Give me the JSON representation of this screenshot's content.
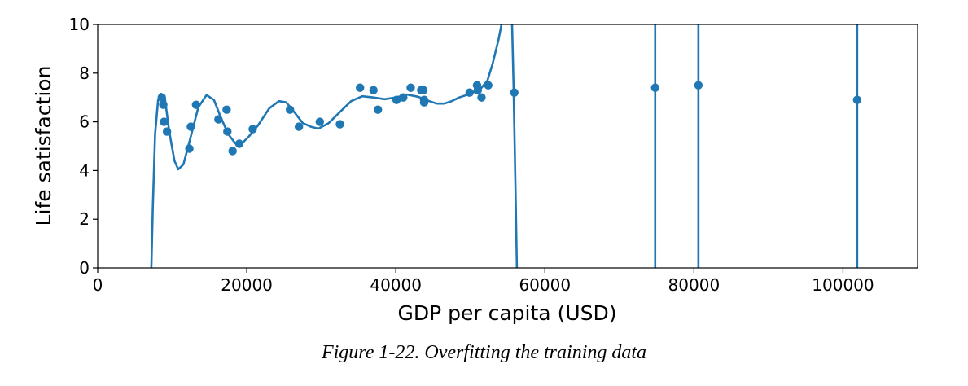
{
  "caption": "Figure 1-22. Overfitting the training data",
  "chart_data": {
    "type": "scatter",
    "xlabel": "GDP per capita (USD)",
    "ylabel": "Life satisfaction",
    "xlim": [
      0,
      110000
    ],
    "ylim": [
      0,
      10
    ],
    "xticks": [
      0,
      20000,
      40000,
      60000,
      80000,
      100000
    ],
    "xtick_labels": [
      "0",
      "20000",
      "40000",
      "60000",
      "80000",
      "100000"
    ],
    "yticks": [
      0,
      2,
      4,
      6,
      8,
      10
    ],
    "ytick_labels": [
      "0",
      "2",
      "4",
      "6",
      "8",
      "10"
    ],
    "grid": false,
    "color": "#1f77b4",
    "points": [
      [
        8600,
        7.0
      ],
      [
        8800,
        6.7
      ],
      [
        8900,
        6.0
      ],
      [
        9300,
        5.6
      ],
      [
        12300,
        4.9
      ],
      [
        12500,
        5.8
      ],
      [
        13200,
        6.7
      ],
      [
        16200,
        6.1
      ],
      [
        17300,
        6.5
      ],
      [
        17400,
        5.6
      ],
      [
        18100,
        4.8
      ],
      [
        19000,
        5.1
      ],
      [
        20800,
        5.7
      ],
      [
        25800,
        6.5
      ],
      [
        27000,
        5.8
      ],
      [
        29800,
        6.0
      ],
      [
        32500,
        5.9
      ],
      [
        35200,
        7.4
      ],
      [
        37000,
        7.3
      ],
      [
        37600,
        6.5
      ],
      [
        40100,
        6.9
      ],
      [
        41000,
        7.0
      ],
      [
        42000,
        7.4
      ],
      [
        43400,
        7.3
      ],
      [
        43700,
        7.3
      ],
      [
        43800,
        6.9
      ],
      [
        43800,
        6.8
      ],
      [
        49900,
        7.2
      ],
      [
        50900,
        7.5
      ],
      [
        51000,
        7.3
      ],
      [
        51500,
        7.0
      ],
      [
        52400,
        7.5
      ],
      [
        55900,
        7.2
      ],
      [
        74800,
        7.4
      ],
      [
        80600,
        7.5
      ],
      [
        101900,
        6.9
      ]
    ],
    "fit_curve": [
      [
        7200,
        0
      ],
      [
        7400,
        2.5
      ],
      [
        7700,
        5.5
      ],
      [
        8100,
        6.9
      ],
      [
        8500,
        7.15
      ],
      [
        9000,
        7.0
      ],
      [
        9600,
        5.6
      ],
      [
        10300,
        4.4
      ],
      [
        10800,
        4.05
      ],
      [
        11500,
        4.25
      ],
      [
        12500,
        5.4
      ],
      [
        13500,
        6.6
      ],
      [
        14600,
        7.1
      ],
      [
        15600,
        6.9
      ],
      [
        16500,
        6.2
      ],
      [
        17500,
        5.5
      ],
      [
        18500,
        5.1
      ],
      [
        19300,
        5.1
      ],
      [
        20300,
        5.4
      ],
      [
        21500,
        5.85
      ],
      [
        23000,
        6.55
      ],
      [
        24300,
        6.85
      ],
      [
        25300,
        6.8
      ],
      [
        26500,
        6.35
      ],
      [
        27500,
        5.95
      ],
      [
        28600,
        5.8
      ],
      [
        29600,
        5.72
      ],
      [
        31000,
        5.95
      ],
      [
        32500,
        6.4
      ],
      [
        34000,
        6.85
      ],
      [
        35500,
        7.05
      ],
      [
        37000,
        7.0
      ],
      [
        38500,
        6.93
      ],
      [
        40000,
        7.0
      ],
      [
        41500,
        7.12
      ],
      [
        43000,
        7.03
      ],
      [
        44500,
        6.85
      ],
      [
        45500,
        6.75
      ],
      [
        46500,
        6.75
      ],
      [
        47500,
        6.85
      ],
      [
        48500,
        7.0
      ],
      [
        49500,
        7.1
      ],
      [
        50500,
        7.22
      ],
      [
        51500,
        7.4
      ],
      [
        52300,
        7.7
      ],
      [
        53000,
        8.4
      ],
      [
        53800,
        9.4
      ],
      [
        54500,
        10.5
      ],
      [
        55000,
        11.5
      ],
      [
        55400,
        11.5
      ],
      [
        55600,
        10.0
      ],
      [
        55800,
        7.5
      ],
      [
        56100,
        2.5
      ],
      [
        56300,
        -1.0
      ]
    ],
    "vertical_lines_x": [
      74800,
      80600,
      101900
    ]
  }
}
